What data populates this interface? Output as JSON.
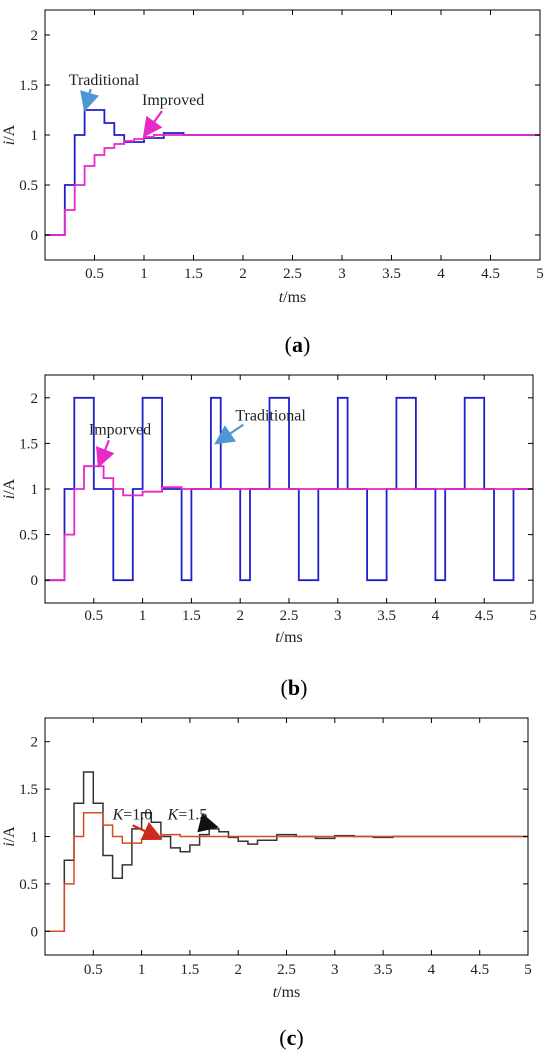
{
  "chart_data": [
    {
      "type": "line",
      "panel_label": "a",
      "xlabel_var": "t",
      "xlabel_unit": "/ms",
      "ylabel_var": "i",
      "ylabel_unit": "/A",
      "xlim": [
        0,
        5
      ],
      "ylim": [
        -0.25,
        2.25
      ],
      "xticks": [
        0.5,
        1,
        1.5,
        2,
        2.5,
        3,
        3.5,
        4,
        4.5,
        5
      ],
      "xticklabels": [
        "0.5",
        "1",
        "1.5",
        "2",
        "2.5",
        "3",
        "3.5",
        "4",
        "4.5",
        "5"
      ],
      "yticks": [
        0,
        0.5,
        1,
        1.5,
        2
      ],
      "yticklabels": [
        "0",
        "0.5",
        "1",
        "1.5",
        "2"
      ],
      "series": [
        {
          "name": "Traditional",
          "color": "#1f1fcc",
          "step": true,
          "x": [
            0,
            0.2,
            0.3,
            0.4,
            0.6,
            0.7,
            0.8,
            1.0,
            1.2,
            1.4,
            5
          ],
          "y": [
            0,
            0.5,
            1.0,
            1.25,
            1.12,
            1.0,
            0.93,
            0.97,
            1.02,
            1.0,
            1.0
          ]
        },
        {
          "name": "Improved",
          "color": "#e629c7",
          "step": true,
          "x": [
            0,
            0.2,
            0.3,
            0.4,
            0.5,
            0.6,
            0.7,
            0.8,
            0.9,
            1.0,
            1.1,
            1.2,
            1.4,
            5
          ],
          "y": [
            0,
            0.25,
            0.5,
            0.69,
            0.8,
            0.87,
            0.91,
            0.94,
            0.96,
            0.98,
            1.0,
            1.0,
            1.0,
            1.0
          ]
        }
      ],
      "annotations": [
        {
          "text": "Traditional",
          "color": "#4f97d4",
          "point": [
            0.4,
            1.25
          ],
          "text_pos": [
            0.24,
            1.5
          ]
        },
        {
          "text": "Improved",
          "color": "#e629c7",
          "point": [
            1.0,
            0.99
          ],
          "text_pos": [
            0.98,
            1.3
          ]
        }
      ]
    },
    {
      "type": "line",
      "panel_label": "b",
      "xlabel_var": "t",
      "xlabel_unit": "/ms",
      "ylabel_var": "i",
      "ylabel_unit": "/A",
      "xlim": [
        0,
        5
      ],
      "ylim": [
        -0.25,
        2.25
      ],
      "xticks": [
        0.5,
        1,
        1.5,
        2,
        2.5,
        3,
        3.5,
        4,
        4.5,
        5
      ],
      "xticklabels": [
        "0.5",
        "1",
        "1.5",
        "2",
        "2.5",
        "3",
        "3.5",
        "4",
        "4.5",
        "5"
      ],
      "yticks": [
        0,
        0.5,
        1,
        1.5,
        2
      ],
      "yticklabels": [
        "0",
        "0.5",
        "1",
        "1.5",
        "2"
      ],
      "series": [
        {
          "name": "Traditional",
          "color": "#1f1fcc",
          "step": true,
          "x": [
            0,
            0.2,
            0.3,
            0.5,
            0.6,
            0.7,
            0.9,
            1.0,
            1.2,
            1.4,
            1.5,
            1.7,
            1.8,
            2.0,
            2.1,
            2.3,
            2.5,
            2.6,
            2.8,
            3.0,
            3.1,
            3.3,
            3.5,
            3.6,
            3.8,
            4.0,
            4.1,
            4.3,
            4.5,
            4.6,
            4.8,
            5.0
          ],
          "y": [
            0,
            1,
            2,
            1,
            1,
            0,
            1,
            2,
            1,
            0,
            1,
            2,
            1,
            0,
            1,
            2,
            1,
            0,
            1,
            2,
            1,
            0,
            1,
            2,
            1,
            0,
            1,
            2,
            1,
            0,
            1,
            1
          ]
        },
        {
          "name": "Improved",
          "color": "#e629c7",
          "step": true,
          "x": [
            0,
            0.2,
            0.3,
            0.4,
            0.6,
            0.7,
            0.8,
            1.0,
            1.2,
            1.4,
            5
          ],
          "y": [
            0,
            0.5,
            1.0,
            1.25,
            1.12,
            1.0,
            0.93,
            0.97,
            1.02,
            1.0,
            1.0
          ]
        }
      ],
      "annotations": [
        {
          "text": "Imporved",
          "color": "#e629c7",
          "point": [
            0.55,
            1.25
          ],
          "text_pos": [
            0.45,
            1.6
          ]
        },
        {
          "text": "Traditional",
          "color": "#4f97d4",
          "point": [
            1.75,
            1.5
          ],
          "text_pos": [
            1.95,
            1.75
          ]
        }
      ]
    },
    {
      "type": "line",
      "panel_label": "c",
      "xlabel_var": "t",
      "xlabel_unit": "/ms",
      "ylabel_var": "i",
      "ylabel_unit": "/A",
      "xlim": [
        0,
        5
      ],
      "ylim": [
        -0.25,
        2.25
      ],
      "xticks": [
        0.5,
        1,
        1.5,
        2,
        2.5,
        3,
        3.5,
        4,
        4.5,
        5
      ],
      "xticklabels": [
        "0.5",
        "1",
        "1.5",
        "2",
        "2.5",
        "3",
        "3.5",
        "4",
        "4.5",
        "5"
      ],
      "yticks": [
        0,
        0.5,
        1,
        1.5,
        2
      ],
      "yticklabels": [
        "0",
        "0.5",
        "1",
        "1.5",
        "2"
      ],
      "series": [
        {
          "name": "K=1.5",
          "color": "#333333",
          "step": true,
          "x": [
            0,
            0.2,
            0.3,
            0.4,
            0.5,
            0.6,
            0.7,
            0.8,
            0.9,
            1.0,
            1.1,
            1.2,
            1.3,
            1.4,
            1.5,
            1.6,
            1.7,
            1.8,
            1.9,
            2.0,
            2.1,
            2.2,
            2.4,
            2.6,
            2.8,
            3.0,
            3.2,
            3.4,
            3.6,
            4.0,
            5.0
          ],
          "y": [
            0,
            0.75,
            1.35,
            1.68,
            1.35,
            0.8,
            0.56,
            0.7,
            1.08,
            1.25,
            1.15,
            1.0,
            0.88,
            0.84,
            0.91,
            1.02,
            1.08,
            1.05,
            0.99,
            0.95,
            0.92,
            0.96,
            1.02,
            1.0,
            0.98,
            1.01,
            1.0,
            0.99,
            1.0,
            1.0,
            1.0
          ]
        },
        {
          "name": "K=1.0",
          "color": "#d64a28",
          "step": true,
          "x": [
            0,
            0.2,
            0.3,
            0.4,
            0.6,
            0.7,
            0.8,
            1.0,
            1.2,
            1.4,
            5
          ],
          "y": [
            0,
            0.5,
            1.0,
            1.25,
            1.12,
            1.0,
            0.93,
            0.97,
            1.02,
            1.0,
            1.0
          ]
        }
      ],
      "annotations": [
        {
          "text_var": "K",
          "text_rest": "=1.0",
          "color": "#cc2a1a",
          "point": [
            1.2,
            0.98
          ],
          "text_pos": [
            0.7,
            1.18
          ]
        },
        {
          "text_var": "K",
          "text_rest": "=1.5",
          "color": "#111111",
          "point": [
            1.78,
            1.1
          ],
          "text_pos": [
            1.27,
            1.18
          ]
        }
      ]
    }
  ]
}
